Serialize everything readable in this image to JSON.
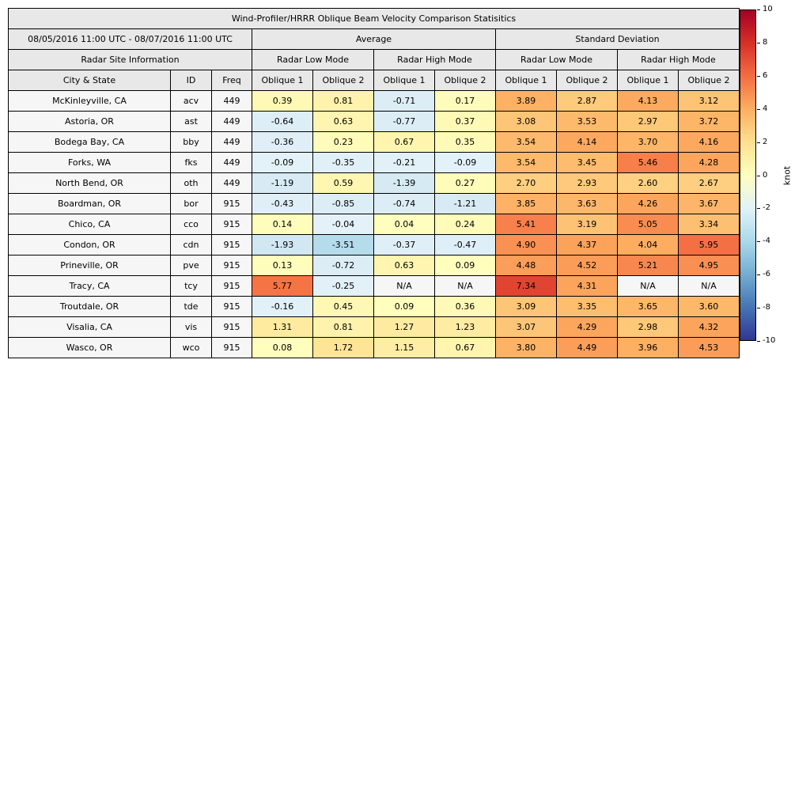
{
  "chart_data": {
    "type": "table",
    "title": "Wind-Profiler/HRRR Oblique Beam Velocity Comparison Statisitics",
    "date_range": "08/05/2016 11:00 UTC - 08/07/2016 11:00 UTC",
    "group_headers": [
      "Average",
      "Standard Deviation"
    ],
    "site_info_header": "Radar Site Information",
    "mode_headers": [
      "Radar Low Mode",
      "Radar High Mode",
      "Radar Low Mode",
      "Radar High Mode"
    ],
    "columns": [
      "City & State",
      "ID",
      "Freq",
      "Oblique 1",
      "Oblique 2",
      "Oblique 1",
      "Oblique 2",
      "Oblique 1",
      "Oblique 2",
      "Oblique 1",
      "Oblique 2"
    ],
    "na_text": "N/A",
    "rows": [
      {
        "city": "McKinleyville, CA",
        "id": "acv",
        "freq": "449",
        "values": [
          "0.39",
          "0.81",
          "-0.71",
          "0.17",
          "3.89",
          "2.87",
          "4.13",
          "3.12"
        ]
      },
      {
        "city": "Astoria, OR",
        "id": "ast",
        "freq": "449",
        "values": [
          "-0.64",
          "0.63",
          "-0.77",
          "0.37",
          "3.08",
          "3.53",
          "2.97",
          "3.72"
        ]
      },
      {
        "city": "Bodega Bay, CA",
        "id": "bby",
        "freq": "449",
        "values": [
          "-0.36",
          "0.23",
          "0.67",
          "0.35",
          "3.54",
          "4.14",
          "3.70",
          "4.16"
        ]
      },
      {
        "city": "Forks, WA",
        "id": "fks",
        "freq": "449",
        "values": [
          "-0.09",
          "-0.35",
          "-0.21",
          "-0.09",
          "3.54",
          "3.45",
          "5.46",
          "4.28"
        ]
      },
      {
        "city": "North Bend, OR",
        "id": "oth",
        "freq": "449",
        "values": [
          "-1.19",
          "0.59",
          "-1.39",
          "0.27",
          "2.70",
          "2.93",
          "2.60",
          "2.67"
        ]
      },
      {
        "city": "Boardman, OR",
        "id": "bor",
        "freq": "915",
        "values": [
          "-0.43",
          "-0.85",
          "-0.74",
          "-1.21",
          "3.85",
          "3.63",
          "4.26",
          "3.67"
        ]
      },
      {
        "city": "Chico, CA",
        "id": "cco",
        "freq": "915",
        "values": [
          "0.14",
          "-0.04",
          "0.04",
          "0.24",
          "5.41",
          "3.19",
          "5.05",
          "3.34"
        ]
      },
      {
        "city": "Condon, OR",
        "id": "cdn",
        "freq": "915",
        "values": [
          "-1.93",
          "-3.51",
          "-0.37",
          "-0.47",
          "4.90",
          "4.37",
          "4.04",
          "5.95"
        ]
      },
      {
        "city": "Prineville, OR",
        "id": "pve",
        "freq": "915",
        "values": [
          "0.13",
          "-0.72",
          "0.63",
          "0.09",
          "4.48",
          "4.52",
          "5.21",
          "4.95"
        ]
      },
      {
        "city": "Tracy, CA",
        "id": "tcy",
        "freq": "915",
        "values": [
          "5.77",
          "-0.25",
          "N/A",
          "N/A",
          "7.34",
          "4.31",
          "N/A",
          "N/A"
        ]
      },
      {
        "city": "Troutdale, OR",
        "id": "tde",
        "freq": "915",
        "values": [
          "-0.16",
          "0.45",
          "0.09",
          "0.36",
          "3.09",
          "3.35",
          "3.65",
          "3.60"
        ]
      },
      {
        "city": "Visalia, CA",
        "id": "vis",
        "freq": "915",
        "values": [
          "1.31",
          "0.81",
          "1.27",
          "1.23",
          "3.07",
          "4.29",
          "2.98",
          "4.32"
        ]
      },
      {
        "city": "Wasco, OR",
        "id": "wco",
        "freq": "915",
        "values": [
          "0.08",
          "1.72",
          "1.15",
          "0.67",
          "3.80",
          "4.49",
          "3.96",
          "4.53"
        ]
      }
    ],
    "colorbar": {
      "label": "knot",
      "min": -10,
      "max": 10,
      "ticks": [
        "10",
        "8",
        "6",
        "4",
        "2",
        "0",
        "-2",
        "-4",
        "-6",
        "-8",
        "-10"
      ],
      "gradient_top_to_bottom": [
        "#a50026",
        "#d73027",
        "#f46d43",
        "#fdae61",
        "#fee090",
        "#ffffbf",
        "#e0f3f8",
        "#abd9e9",
        "#74add1",
        "#4575b4",
        "#313695"
      ],
      "positive_stops": {
        "values": [
          0,
          2,
          4,
          6,
          8,
          10
        ],
        "colors": [
          "#ffffbf",
          "#fee090",
          "#fdae61",
          "#f46d43",
          "#d73027",
          "#a50026"
        ]
      },
      "negative_stops": {
        "values": [
          0,
          2,
          4,
          6,
          8,
          10
        ],
        "colors": [
          "#e4f1f8",
          "#d0e7f2",
          "#abd9e9",
          "#74add1",
          "#4575b4",
          "#313695"
        ]
      }
    },
    "colors": {
      "header_bg": "#e8e8e8",
      "site_bg": "#f6f6f6",
      "border": "#000000"
    }
  }
}
